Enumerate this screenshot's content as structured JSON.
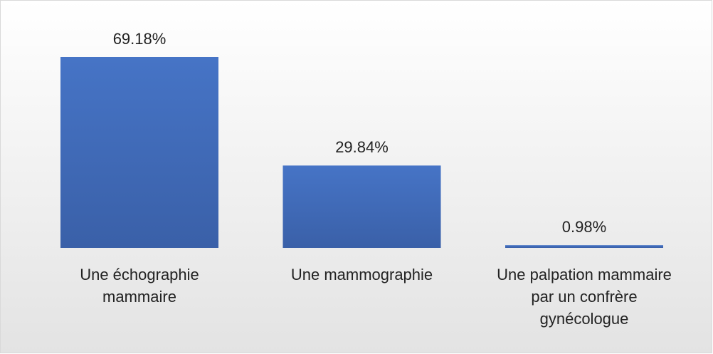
{
  "chart_data": {
    "type": "bar",
    "categories": [
      "Une échographie mammaire",
      "Une mammographie",
      "Une palpation mammaire par un confrère gynécologue"
    ],
    "values": [
      69.18,
      29.84,
      0.98
    ],
    "value_labels": [
      "69.18%",
      "29.84%",
      "0.98%"
    ],
    "color": "#4472c4"
  }
}
